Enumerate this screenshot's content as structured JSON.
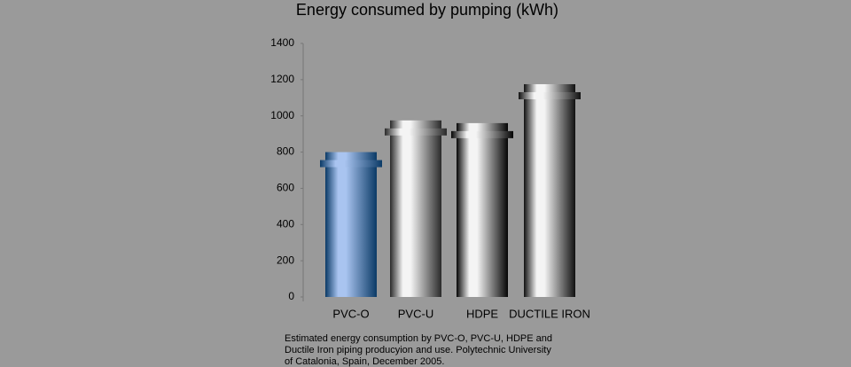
{
  "chart_data": {
    "type": "bar",
    "title": "Energy consumed by pumping (kWh)",
    "categories": [
      "PVC-O",
      "PVC-U",
      "HDPE",
      "DUCTILE IRON"
    ],
    "values": [
      800,
      975,
      960,
      1175
    ],
    "colors": [
      "#0b3a66",
      "#2a2a2a",
      "#050505",
      "#111111"
    ],
    "ylim": [
      0,
      1400
    ],
    "yticks": [
      0,
      200,
      400,
      600,
      800,
      1000,
      1200,
      1400
    ],
    "caption": [
      "Estimated energy consumption by PVC-O, PVC-U, HDPE and",
      "Ductile Iron piping producyion and use. Polytechnic University",
      "of Catalonia, Spain, December 2005."
    ]
  }
}
